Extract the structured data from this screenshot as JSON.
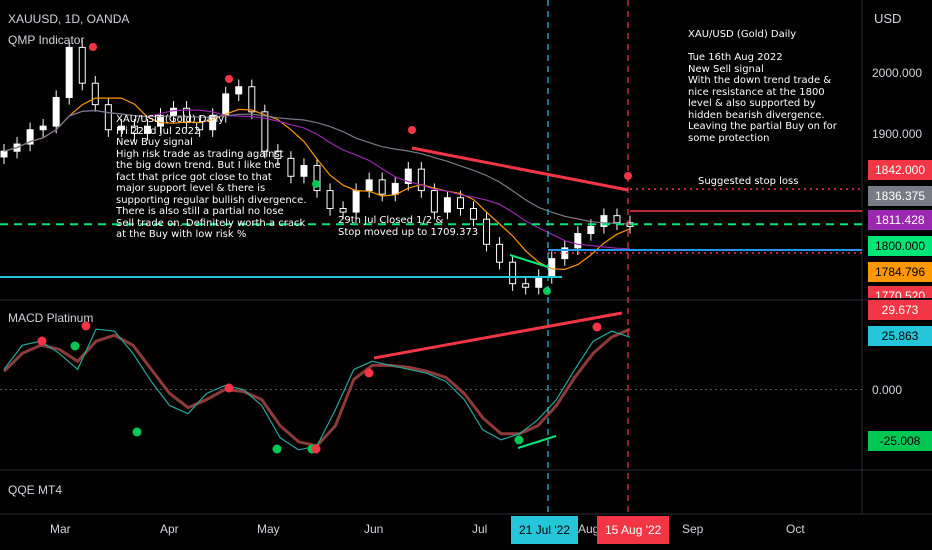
{
  "header": {
    "symbol": "XAUUSD, 1D, OANDA",
    "indicator1": "QMP Indicator",
    "indicator2": "MACD Platinum",
    "indicator3": "QQE MT4",
    "currency": "USD"
  },
  "price_axis": {
    "ticks": [
      "2000.000",
      "1900.000"
    ],
    "tags": [
      {
        "text": "1842.000",
        "bg": "#f23645",
        "fg": "#ffffff",
        "value": 1842.0
      },
      {
        "text": "1836.375",
        "bg": "#787b86",
        "fg": "#ffffff",
        "value": 1836.375
      },
      {
        "text": "1811.428",
        "bg": "#9c27b0",
        "fg": "#ffffff",
        "value": 1811.428
      },
      {
        "text": "1800.000",
        "bg": "#00e676",
        "fg": "#000000",
        "value": 1800.0
      },
      {
        "text": "1784.796",
        "bg": "#ff9800",
        "fg": "#000000",
        "value": 1784.796
      },
      {
        "text": "1770.520",
        "bg": "#f23645",
        "fg": "#ffffff",
        "value": 1770.52
      }
    ]
  },
  "macd_axis": {
    "ticks": [
      "0.000"
    ],
    "tags": [
      {
        "text": "29.673",
        "bg": "#f23645",
        "fg": "#ffffff",
        "value": 29.673
      },
      {
        "text": "25.863",
        "bg": "#26c6da",
        "fg": "#000000",
        "value": 25.863
      },
      {
        "text": "-25.008",
        "bg": "#00c853",
        "fg": "#000000",
        "value": -25.008
      }
    ]
  },
  "time_axis": {
    "ticks": [
      "Mar",
      "Apr",
      "May",
      "Jun",
      "Jul",
      "Aug",
      "Sep",
      "Oct"
    ],
    "highlights": [
      {
        "text": "21 Jul '22",
        "bg": "#26c6da",
        "fg": "#000000"
      },
      {
        "text": "15 Aug '22",
        "bg": "#f23645",
        "fg": "#ffffff"
      }
    ]
  },
  "annotations": {
    "sell_note": "XAU/USD (Gold) Daily\n\nTue 16th Aug 2022\nNew Sell signal\nWith the down trend trade &\nnice resistance at the 1800\nlevel & also supported by\nhidden bearish divergence.\nLeaving the partial Buy on for\nsome protection",
    "buy_note": "XAU/USD (Gold) Daily\nFri 22nd Jul 2022\nNew Buy signal\nHigh risk trade as trading against\nthe big down trend. But I like the\nfact that price got close to that\nmajor support level & there is\nsupporting regular bullish divergence.\nThere is also still a partial no lose\nSell trade on. Definitely worth a crack\nat the Buy with low risk %",
    "closed_note": "29th Jul Closed 1/2 &\nStop moved up to 1709.373",
    "stop_note": "Suggested stop loss"
  },
  "colors": {
    "bg": "#000000",
    "up": "#ffffff",
    "down": "#ffffff",
    "ema_orange": "#ff9800",
    "ema_purple": "#9c27b0",
    "ema_gray": "#787b86",
    "macd_fast": "#26a69a",
    "macd_slow": "#8d3a3a",
    "buy": "#00c853",
    "sell": "#f23645",
    "cyan": "#26c6da",
    "support": "#2196f3"
  },
  "chart_data": {
    "type": "candlestick",
    "price": {
      "ylim": [
        1690,
        2095
      ],
      "x_months": [
        "Mar",
        "Apr",
        "May",
        "Jun",
        "Jul",
        "Aug",
        "Sep",
        "Oct"
      ],
      "close_approx": [
        1895,
        1905,
        1925,
        1930,
        1970,
        2040,
        1990,
        1960,
        1925,
        1930,
        1920,
        1930,
        1945,
        1955,
        1935,
        1925,
        1945,
        1975,
        1985,
        1950,
        1895,
        1885,
        1860,
        1875,
        1840,
        1815,
        1810,
        1840,
        1855,
        1835,
        1850,
        1870,
        1840,
        1810,
        1830,
        1815,
        1800,
        1765,
        1740,
        1710,
        1705,
        1720,
        1745,
        1760,
        1780,
        1790,
        1805,
        1795,
        1790
      ],
      "levels": {
        "support": 1800.0,
        "stop_loss": 1842.0,
        "big_support": 1680.0
      },
      "signals": [
        {
          "type": "sell",
          "date": "early Mar"
        },
        {
          "type": "sell",
          "date": "mid Apr"
        },
        {
          "type": "buy",
          "date": "mid May"
        },
        {
          "type": "sell",
          "date": "early Jun"
        },
        {
          "type": "buy",
          "date": "21 Jul '22"
        },
        {
          "type": "sell",
          "date": "15 Aug '22"
        }
      ]
    },
    "macd": {
      "ylim": [
        -40,
        42
      ],
      "fast": [
        10,
        22,
        24,
        18,
        10,
        30,
        29,
        18,
        4,
        -8,
        -12,
        -2,
        2,
        0,
        -8,
        -24,
        -30,
        -28,
        -10,
        10,
        14,
        12,
        10,
        8,
        4,
        -5,
        -20,
        -25,
        -22,
        -15,
        -5,
        10,
        24,
        29,
        26
      ],
      "slow": [
        9,
        18,
        22,
        20,
        14,
        24,
        27,
        22,
        10,
        -2,
        -9,
        -5,
        0,
        -1,
        -5,
        -18,
        -26,
        -28,
        -18,
        5,
        12,
        12,
        11,
        9,
        6,
        -2,
        -14,
        -22,
        -22,
        -18,
        -8,
        6,
        18,
        26,
        30
      ]
    }
  }
}
